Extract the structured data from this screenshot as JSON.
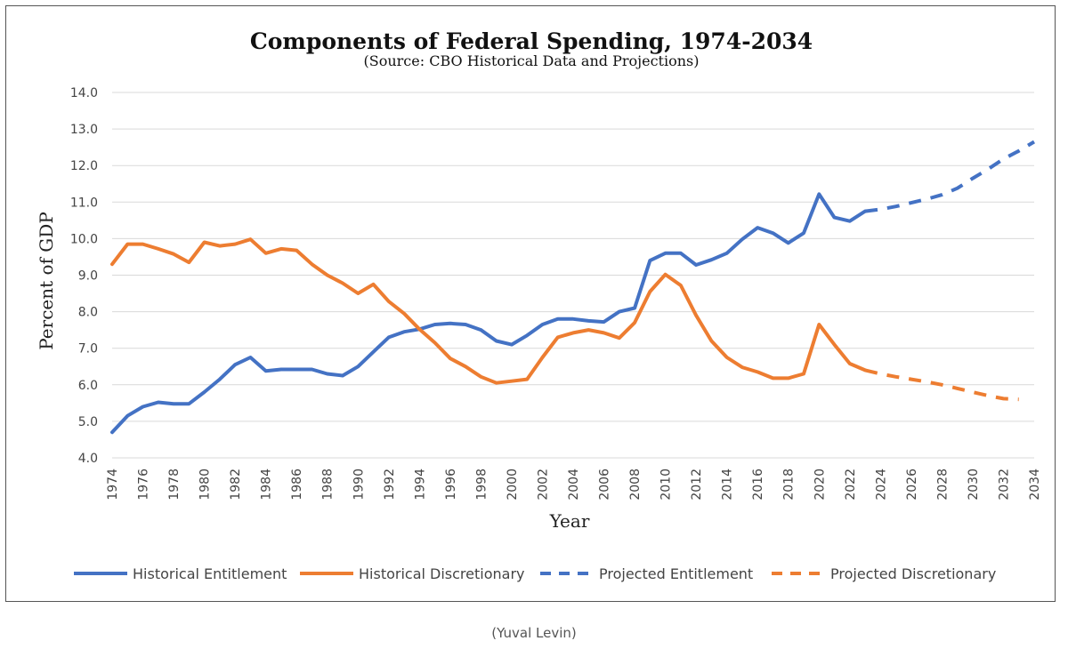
{
  "chart_data": {
    "type": "line",
    "title": "Components of Federal Spending, 1974-2034",
    "subtitle": "(Source: CBO Historical Data and Projections)",
    "xlabel": "Year",
    "ylabel": "Percent of GDP",
    "xlim": [
      1974,
      2034
    ],
    "ylim": [
      4.0,
      14.0
    ],
    "yticks": [
      "4.0",
      "5.0",
      "6.0",
      "7.0",
      "8.0",
      "9.0",
      "10.0",
      "11.0",
      "12.0",
      "13.0",
      "14.0"
    ],
    "xticks": [
      "1974",
      "1976",
      "1978",
      "1980",
      "1982",
      "1984",
      "1986",
      "1988",
      "1990",
      "1992",
      "1994",
      "1996",
      "1998",
      "2000",
      "2002",
      "2004",
      "2006",
      "2008",
      "2010",
      "2012",
      "2014",
      "2016",
      "2018",
      "2020",
      "2022",
      "2024",
      "2026",
      "2028",
      "2030",
      "2032",
      "2034"
    ],
    "grid": true,
    "legend_position": "bottom",
    "series": [
      {
        "name": "Historical Entitlement",
        "color": "#4472c4",
        "dashed": false,
        "x": [
          1974,
          1975,
          1976,
          1977,
          1978,
          1979,
          1980,
          1981,
          1982,
          1983,
          1984,
          1985,
          1986,
          1987,
          1988,
          1989,
          1990,
          1991,
          1992,
          1993,
          1994,
          1995,
          1996,
          1997,
          1998,
          1999,
          2000,
          2001,
          2002,
          2003,
          2004,
          2005,
          2006,
          2007,
          2008,
          2009,
          2010,
          2011,
          2012,
          2013,
          2014,
          2015,
          2016,
          2017,
          2018,
          2019,
          2020,
          2021,
          2022,
          2023
        ],
        "values": [
          4.7,
          5.15,
          5.4,
          5.52,
          5.48,
          5.48,
          5.8,
          6.15,
          6.55,
          6.75,
          6.38,
          6.42,
          6.42,
          6.42,
          6.3,
          6.25,
          6.5,
          6.9,
          7.3,
          7.45,
          7.52,
          7.65,
          7.68,
          7.65,
          7.5,
          7.2,
          7.1,
          7.35,
          7.65,
          7.8,
          7.8,
          7.75,
          7.72,
          8.0,
          8.1,
          9.4,
          9.6,
          9.6,
          9.28,
          9.42,
          9.6,
          9.98,
          10.3,
          10.15,
          9.88,
          10.15,
          11.22,
          10.58,
          10.48,
          10.75
        ]
      },
      {
        "name": "Historical Discretionary",
        "color": "#ed7d31",
        "dashed": false,
        "x": [
          1974,
          1975,
          1976,
          1977,
          1978,
          1979,
          1980,
          1981,
          1982,
          1983,
          1984,
          1985,
          1986,
          1987,
          1988,
          1989,
          1990,
          1991,
          1992,
          1993,
          1994,
          1995,
          1996,
          1997,
          1998,
          1999,
          2000,
          2001,
          2002,
          2003,
          2004,
          2005,
          2006,
          2007,
          2008,
          2009,
          2010,
          2011,
          2012,
          2013,
          2014,
          2015,
          2016,
          2017,
          2018,
          2019,
          2020,
          2021,
          2022,
          2023
        ],
        "values": [
          9.3,
          9.85,
          9.85,
          9.72,
          9.58,
          9.35,
          9.9,
          9.8,
          9.85,
          9.98,
          9.6,
          9.72,
          9.68,
          9.3,
          9.0,
          8.78,
          8.5,
          8.75,
          8.28,
          7.95,
          7.52,
          7.15,
          6.72,
          6.5,
          6.22,
          6.05,
          6.1,
          6.15,
          6.75,
          7.3,
          7.42,
          7.5,
          7.42,
          7.28,
          7.7,
          8.55,
          9.02,
          8.72,
          7.9,
          7.2,
          6.75,
          6.48,
          6.35,
          6.18,
          6.18,
          6.3,
          7.65,
          7.1,
          6.58,
          6.4
        ]
      },
      {
        "name": "Projected Entitlement",
        "color": "#4472c4",
        "dashed": true,
        "x": [
          2023,
          2024,
          2025,
          2026,
          2027,
          2028,
          2029,
          2030,
          2031,
          2032,
          2033,
          2034
        ],
        "values": [
          10.75,
          10.8,
          10.88,
          10.98,
          11.08,
          11.2,
          11.38,
          11.65,
          11.9,
          12.18,
          12.4,
          12.65
        ]
      },
      {
        "name": "Projected Discretionary",
        "color": "#ed7d31",
        "dashed": true,
        "x": [
          2023,
          2024,
          2025,
          2026,
          2027,
          2028,
          2029,
          2030,
          2031,
          2032,
          2033
        ],
        "values": [
          6.4,
          6.3,
          6.22,
          6.15,
          6.08,
          6.0,
          5.9,
          5.8,
          5.7,
          5.62,
          5.6
        ]
      }
    ]
  },
  "caption": "(Yuval Levin)"
}
